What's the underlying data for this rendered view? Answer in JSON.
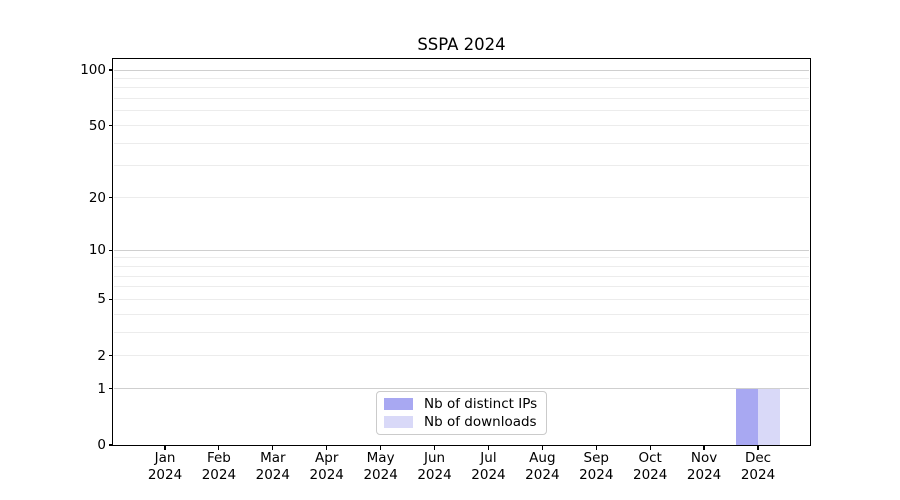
{
  "chart_data": {
    "type": "bar",
    "title": "SSPA 2024",
    "categories": [
      "Jan 2024",
      "Feb 2024",
      "Mar 2024",
      "Apr 2024",
      "May 2024",
      "Jun 2024",
      "Jul 2024",
      "Aug 2024",
      "Sep 2024",
      "Oct 2024",
      "Nov 2024",
      "Dec 2024"
    ],
    "series": [
      {
        "name": "Nb of distinct IPs",
        "color": "#a8a8f2",
        "values": [
          0,
          0,
          0,
          0,
          0,
          0,
          0,
          0,
          0,
          0,
          0,
          1
        ]
      },
      {
        "name": "Nb of downloads",
        "color": "#d9d9f8",
        "values": [
          0,
          0,
          0,
          0,
          0,
          0,
          0,
          0,
          0,
          0,
          0,
          1
        ]
      }
    ],
    "xlabel": "",
    "ylabel": "",
    "y_axis": {
      "scale": "log1p",
      "tick_values": [
        0,
        1,
        2,
        5,
        10,
        20,
        50,
        100
      ],
      "tick_labels": [
        "0",
        "1",
        "2",
        "5",
        "10",
        "20",
        "50",
        "100"
      ],
      "ylim": [
        0,
        114
      ]
    },
    "grid": {
      "orientation": "horizontal",
      "major_values": [
        1,
        10,
        100
      ],
      "minor_values": [
        2,
        3,
        4,
        5,
        6,
        7,
        8,
        9,
        20,
        30,
        40,
        50,
        60,
        70,
        80,
        90
      ],
      "major_color": "#cfcfcf",
      "minor_color": "#ececec"
    },
    "legend": {
      "position": "lower center",
      "entries": [
        "Nb of distinct IPs",
        "Nb of downloads"
      ]
    },
    "colors": {
      "background": "#ffffff",
      "spine": "#000000",
      "text": "#000000"
    }
  }
}
